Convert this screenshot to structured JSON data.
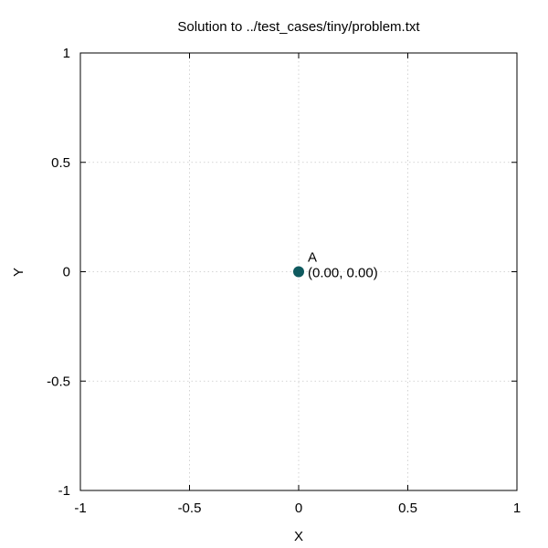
{
  "chart_data": {
    "type": "scatter",
    "title": "Solution to ../test_cases/tiny/problem.txt",
    "xlabel": "X",
    "ylabel": "Y",
    "xlim": [
      -1,
      1
    ],
    "ylim": [
      -1,
      1
    ],
    "grid": true,
    "xticks": [
      -1,
      -0.5,
      0,
      0.5,
      1
    ],
    "yticks": [
      -1,
      -0.5,
      0,
      0.5,
      1
    ],
    "xtick_labels": [
      "-1",
      "-0.5",
      "0",
      "0.5",
      "1"
    ],
    "ytick_labels": [
      "-1",
      "-0.5",
      "0",
      "0.5",
      "1"
    ],
    "points": [
      {
        "x": 0,
        "y": 0,
        "name": "A",
        "label": "(0.00, 0.00)",
        "color": "#0f5a5f"
      }
    ]
  }
}
